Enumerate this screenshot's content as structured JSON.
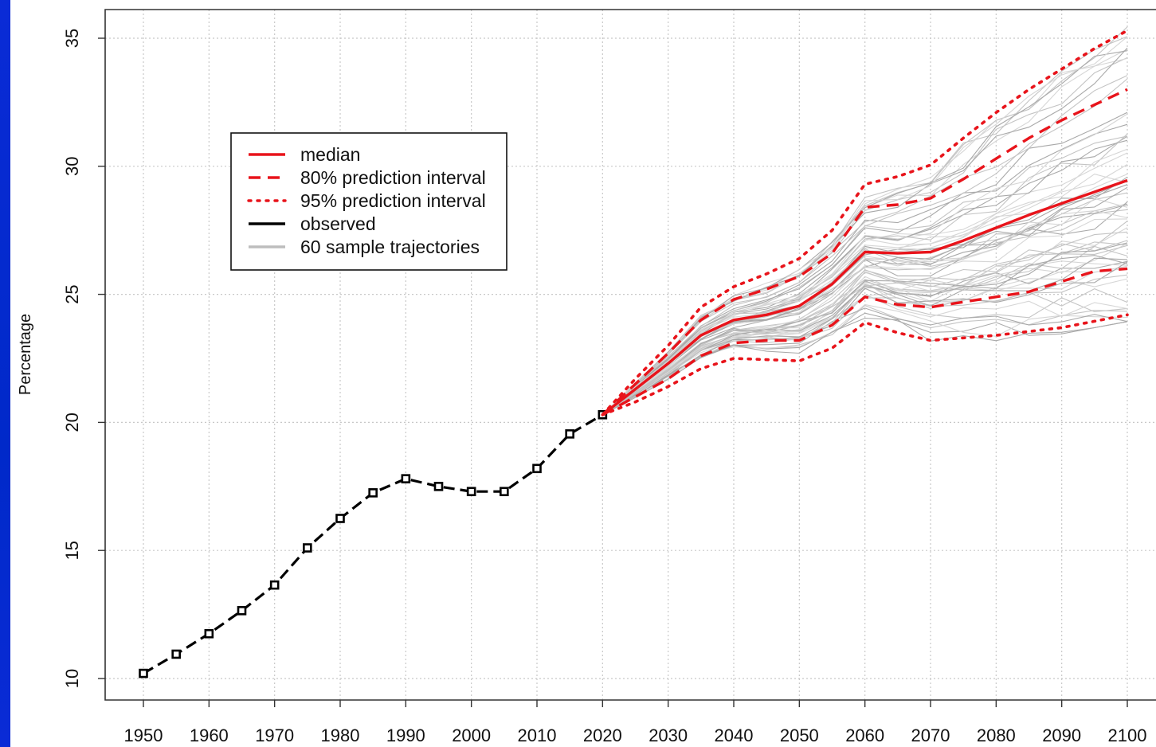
{
  "chart_data": {
    "type": "line",
    "title": "",
    "xlabel": "",
    "ylabel": "Percentage",
    "xlim": [
      1944,
      2108
    ],
    "ylim": [
      9.2,
      36.2
    ],
    "x_ticks": [
      1950,
      1960,
      1970,
      1980,
      1990,
      2000,
      2010,
      2020,
      2030,
      2040,
      2050,
      2060,
      2070,
      2080,
      2090,
      2100
    ],
    "y_ticks": [
      10,
      15,
      20,
      25,
      30,
      35
    ],
    "grid": true,
    "legend_position": "top-left",
    "legend": [
      {
        "label": "median",
        "color": "#e8141b",
        "style": "solid"
      },
      {
        "label": "80% prediction interval",
        "color": "#e8141b",
        "style": "dashed"
      },
      {
        "label": "95% prediction interval",
        "color": "#e8141b",
        "style": "dotted"
      },
      {
        "label": "observed",
        "color": "#000000",
        "style": "solid"
      },
      {
        "label": "60 sample trajectories",
        "color": "#bdbdbd",
        "style": "solid"
      }
    ],
    "series": [
      {
        "name": "observed",
        "color": "#000000",
        "x": [
          1950,
          1955,
          1960,
          1965,
          1970,
          1975,
          1980,
          1985,
          1990,
          1995,
          2000,
          2005,
          2010,
          2015,
          2020
        ],
        "y": [
          10.2,
          10.95,
          11.75,
          12.65,
          13.65,
          15.1,
          16.25,
          17.25,
          17.8,
          17.5,
          17.3,
          17.3,
          18.2,
          19.55,
          20.3
        ]
      },
      {
        "name": "median",
        "color": "#e8141b",
        "x": [
          2020,
          2025,
          2030,
          2035,
          2040,
          2045,
          2050,
          2055,
          2060,
          2065,
          2070,
          2075,
          2080,
          2085,
          2090,
          2095,
          2100
        ],
        "y": [
          20.3,
          21.3,
          22.3,
          23.4,
          24.0,
          24.2,
          24.55,
          25.4,
          26.65,
          26.6,
          26.65,
          27.1,
          27.6,
          28.1,
          28.55,
          29.0,
          29.45
        ]
      },
      {
        "name": "80% upper",
        "color": "#e8141b",
        "x": [
          2020,
          2025,
          2030,
          2035,
          2040,
          2045,
          2050,
          2055,
          2060,
          2065,
          2070,
          2075,
          2080,
          2085,
          2090,
          2095,
          2100
        ],
        "y": [
          20.3,
          21.5,
          22.7,
          24.0,
          24.8,
          25.2,
          25.7,
          26.6,
          28.4,
          28.5,
          28.75,
          29.5,
          30.3,
          31.1,
          31.8,
          32.4,
          33.0
        ]
      },
      {
        "name": "80% lower",
        "color": "#e8141b",
        "x": [
          2020,
          2025,
          2030,
          2035,
          2040,
          2045,
          2050,
          2055,
          2060,
          2065,
          2070,
          2075,
          2080,
          2085,
          2090,
          2095,
          2100
        ],
        "y": [
          20.3,
          21.0,
          21.7,
          22.6,
          23.1,
          23.2,
          23.2,
          23.8,
          24.9,
          24.6,
          24.5,
          24.7,
          24.9,
          25.1,
          25.5,
          25.9,
          26.0
        ]
      },
      {
        "name": "95% upper",
        "color": "#e8141b",
        "x": [
          2020,
          2025,
          2030,
          2035,
          2040,
          2045,
          2050,
          2055,
          2060,
          2065,
          2070,
          2075,
          2080,
          2085,
          2090,
          2095,
          2100
        ],
        "y": [
          20.3,
          21.7,
          23.0,
          24.5,
          25.3,
          25.8,
          26.4,
          27.5,
          29.3,
          29.6,
          30.05,
          31.1,
          32.1,
          33.0,
          33.8,
          34.6,
          35.3
        ]
      },
      {
        "name": "95% lower",
        "color": "#e8141b",
        "x": [
          2020,
          2025,
          2030,
          2035,
          2040,
          2045,
          2050,
          2055,
          2060,
          2065,
          2070,
          2075,
          2080,
          2085,
          2090,
          2095,
          2100
        ],
        "y": [
          20.3,
          20.8,
          21.4,
          22.1,
          22.5,
          22.45,
          22.4,
          22.9,
          23.9,
          23.5,
          23.2,
          23.3,
          23.4,
          23.55,
          23.7,
          23.95,
          24.2
        ]
      }
    ],
    "sample_trajectories": {
      "count": 60,
      "color": "#bdbdbd",
      "x_start": 2020,
      "x_end": 2100
    }
  }
}
